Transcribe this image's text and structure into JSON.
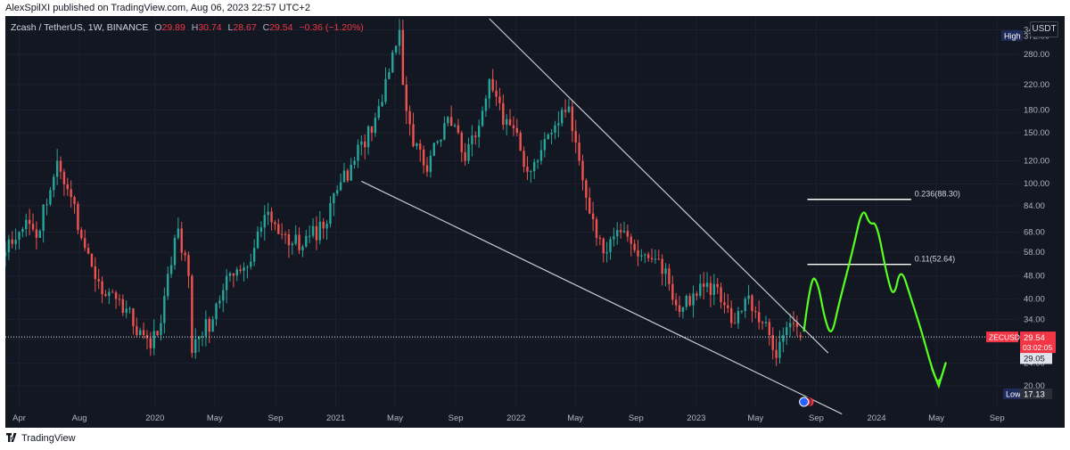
{
  "header": {
    "publisher_text": "AlexSpilXI published on TradingView.com, Aug 06, 2023 22:57 UTC+2"
  },
  "legend": {
    "symbol": "Zcash / TetherUS, 1W, BINANCE",
    "o_label": "O",
    "o_value": "29.89",
    "h_label": "H",
    "h_value": "30.74",
    "l_label": "L",
    "l_value": "28.67",
    "c_label": "C",
    "c_value": "29.54",
    "change": "−0.36 (−1.20%)"
  },
  "currency": "USDT",
  "footer": {
    "brand": "TradingView"
  },
  "colors": {
    "background": "#131722",
    "up": "#26a69a",
    "down": "#ef5350",
    "trendline": "#c8cbd2",
    "fib_line": "#ffffff",
    "projection": "#55ff22",
    "price_label": "#f23645"
  },
  "chart_data": {
    "type": "candlestick",
    "symbol": "ZECUSDT",
    "interval": "1W",
    "exchange": "BINANCE",
    "y_scale": "log",
    "ylim": [
      17,
      380
    ],
    "y_ticks": [
      "340.00",
      "280.00",
      "220.00",
      "180.00",
      "150.00",
      "120.00",
      "100.00",
      "84.00",
      "68.00",
      "58.00",
      "48.00",
      "40.00",
      "34.00",
      "29.05",
      "24.00",
      "20.00"
    ],
    "x_ticks": [
      "Apr",
      "Aug",
      "2020",
      "May",
      "Sep",
      "2021",
      "May",
      "Sep",
      "2022",
      "May",
      "Sep",
      "2023",
      "May",
      "Sep",
      "2024",
      "May",
      "Sep"
    ],
    "x_range": [
      "2019-03-04",
      "2024-10-14"
    ],
    "current_price": {
      "label": "ZECUSDT",
      "value": 29.54,
      "countdown": "03:02:05"
    },
    "price_line_value": 29.54,
    "reference_price": {
      "value": 29.05
    },
    "high_marker": {
      "label": "High",
      "value": "372.00"
    },
    "low_marker": {
      "label": "Low",
      "value": "17.13"
    },
    "ohlc_last": {
      "open": 29.89,
      "high": 30.74,
      "low": 28.67,
      "close": 29.54,
      "change": -0.36,
      "change_pct": -1.2
    },
    "anchors": [
      [
        "2019-03-04",
        58
      ],
      [
        "2019-03-25",
        64
      ],
      [
        "2019-04-15",
        75
      ],
      [
        "2019-05-06",
        65
      ],
      [
        "2019-06-03",
        95
      ],
      [
        "2019-06-17",
        120
      ],
      [
        "2019-06-24",
        110
      ],
      [
        "2019-07-15",
        90
      ],
      [
        "2019-08-12",
        60
      ],
      [
        "2019-09-09",
        46
      ],
      [
        "2019-10-14",
        40
      ],
      [
        "2019-11-04",
        37
      ],
      [
        "2019-11-25",
        30
      ],
      [
        "2019-12-23",
        27
      ],
      [
        "2020-01-13",
        33
      ],
      [
        "2020-02-10",
        65
      ],
      [
        "2020-02-17",
        70
      ],
      [
        "2020-03-09",
        48
      ],
      [
        "2020-03-16",
        26
      ],
      [
        "2020-03-23",
        29
      ],
      [
        "2020-04-27",
        34
      ],
      [
        "2020-05-25",
        48
      ],
      [
        "2020-06-22",
        50
      ],
      [
        "2020-07-20",
        60
      ],
      [
        "2020-08-10",
        78
      ],
      [
        "2020-09-07",
        67
      ],
      [
        "2020-10-05",
        62
      ],
      [
        "2020-11-02",
        66
      ],
      [
        "2020-12-07",
        70
      ],
      [
        "2021-01-04",
        95
      ],
      [
        "2021-02-08",
        120
      ],
      [
        "2021-02-22",
        140
      ],
      [
        "2021-03-15",
        150
      ],
      [
        "2021-04-12",
        230
      ],
      [
        "2021-05-03",
        300
      ],
      [
        "2021-05-10",
        340
      ],
      [
        "2021-05-17",
        220
      ],
      [
        "2021-06-07",
        135
      ],
      [
        "2021-07-05",
        110
      ],
      [
        "2021-07-26",
        140
      ],
      [
        "2021-08-16",
        170
      ],
      [
        "2021-09-06",
        150
      ],
      [
        "2021-09-20",
        120
      ],
      [
        "2021-10-11",
        145
      ],
      [
        "2021-11-08",
        230
      ],
      [
        "2021-11-22",
        200
      ],
      [
        "2021-12-06",
        160
      ],
      [
        "2022-01-03",
        150
      ],
      [
        "2022-01-24",
        110
      ],
      [
        "2022-02-14",
        120
      ],
      [
        "2022-03-14",
        150
      ],
      [
        "2022-04-04",
        180
      ],
      [
        "2022-04-18",
        185
      ],
      [
        "2022-05-09",
        120
      ],
      [
        "2022-06-13",
        65
      ],
      [
        "2022-07-04",
        58
      ],
      [
        "2022-08-01",
        68
      ],
      [
        "2022-08-22",
        62
      ],
      [
        "2022-09-19",
        57
      ],
      [
        "2022-10-10",
        55
      ],
      [
        "2022-11-07",
        45
      ],
      [
        "2022-11-21",
        38
      ],
      [
        "2022-12-19",
        38
      ],
      [
        "2023-01-16",
        44
      ],
      [
        "2023-02-06",
        45
      ],
      [
        "2023-02-27",
        38
      ],
      [
        "2023-03-13",
        33
      ],
      [
        "2023-04-10",
        40
      ],
      [
        "2023-05-01",
        36
      ],
      [
        "2023-05-29",
        30
      ],
      [
        "2023-06-12",
        25
      ],
      [
        "2023-06-26",
        30
      ],
      [
        "2023-07-10",
        33
      ],
      [
        "2023-07-24",
        32
      ],
      [
        "2023-07-31",
        29.54
      ]
    ],
    "drawings": {
      "upper_trendline": [
        [
          "2021-11-08",
          372
        ],
        [
          "2023-09-25",
          26
        ]
      ],
      "lower_trendline": [
        [
          "2021-02-22",
          102
        ],
        [
          "2023-10-23",
          16
        ]
      ],
      "fib_levels": [
        {
          "label": "0.236(88.30)",
          "value": 88.3,
          "x_range": [
            "2023-08-14",
            "2024-03-11"
          ]
        },
        {
          "label": "0.11(52.64)",
          "value": 52.64,
          "x_range": [
            "2023-08-14",
            "2024-03-11"
          ]
        }
      ],
      "projection_path": [
        [
          "2023-08-07",
          31
        ],
        [
          "2023-08-21",
          48
        ],
        [
          "2023-09-04",
          46
        ],
        [
          "2023-09-18",
          34
        ],
        [
          "2023-10-02",
          29.5
        ],
        [
          "2023-10-16",
          38
        ],
        [
          "2023-11-13",
          58
        ],
        [
          "2023-12-04",
          84
        ],
        [
          "2023-12-18",
          72
        ],
        [
          "2024-01-01",
          74
        ],
        [
          "2024-01-22",
          48
        ],
        [
          "2024-02-05",
          40
        ],
        [
          "2024-02-19",
          52
        ],
        [
          "2024-03-11",
          40
        ],
        [
          "2024-04-01",
          31
        ],
        [
          "2024-04-22",
          23
        ],
        [
          "2024-05-06",
          20
        ],
        [
          "2024-05-20",
          24
        ]
      ]
    }
  }
}
